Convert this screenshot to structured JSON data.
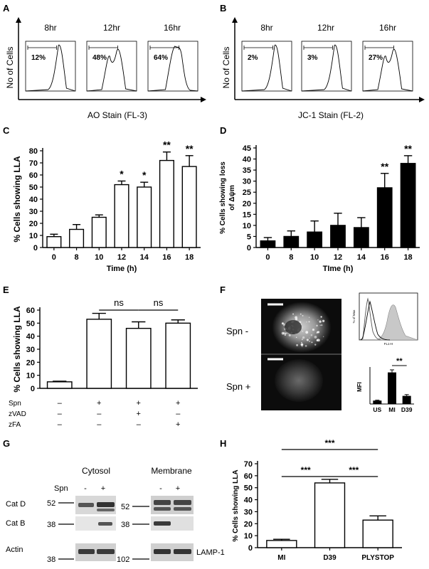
{
  "panel_letters": [
    "A",
    "B",
    "C",
    "D",
    "E",
    "F",
    "G",
    "H"
  ],
  "panelA": {
    "times": [
      "8hr",
      "12hr",
      "16hr"
    ],
    "percents": [
      "12%",
      "48%",
      "64%"
    ],
    "ylabel": "No of Cells",
    "xlabel": "AO Stain (FL-3)"
  },
  "panelB": {
    "times": [
      "8hr",
      "12hr",
      "16hr"
    ],
    "percents": [
      "2%",
      "3%",
      "27%"
    ],
    "ylabel": "No of Cells",
    "xlabel": "JC-1 Stain (FL-2)"
  },
  "panelE": {
    "row_labels": [
      "Spn",
      "zVAD",
      "zFA"
    ],
    "signs": [
      [
        "–",
        "+",
        "+",
        "+"
      ],
      [
        "–",
        "–",
        "+",
        "–"
      ],
      [
        "–",
        "–",
        "–",
        "+"
      ]
    ],
    "ns_label": "ns"
  },
  "panelF": {
    "label_minus": "Spn -",
    "label_plus": "Spn +",
    "hist_ylabel": "% of Max",
    "hist_xlabel": "FL1-H",
    "mfi_ylabel": "MFI",
    "mfi_categories": [
      "US",
      "MI",
      "D39"
    ],
    "mfi_values": [
      4,
      37,
      9.5
    ],
    "mfi_errors": [
      0.5,
      3,
      1.5
    ],
    "mfi_ylim": [
      0,
      40
    ],
    "mfi_sig": "**"
  },
  "panelG": {
    "cytosol": "Cytosol",
    "membrane": "Membrane",
    "spn": "Spn",
    "lane_signs": [
      "-",
      "+"
    ],
    "rows": [
      "Cat D",
      "Cat B",
      "Actin"
    ],
    "cyto_mw": [
      "52",
      "38",
      "38"
    ],
    "mem_mw": [
      "52",
      "38",
      "102"
    ],
    "lamp": "LAMP-1"
  },
  "chart_data": [
    {
      "id": "C",
      "type": "bar",
      "categories": [
        "0",
        "8",
        "10",
        "12",
        "14",
        "16",
        "18"
      ],
      "values": [
        9,
        15,
        25,
        52,
        50,
        72,
        67
      ],
      "errors": [
        2,
        4,
        2,
        3,
        4,
        7,
        9
      ],
      "significance": [
        "",
        "",
        "",
        "*",
        "*",
        "**",
        "**"
      ],
      "xlabel": "Time (h)",
      "ylabel": "% Cells showing LLA",
      "ylim": [
        0,
        80
      ],
      "yticks": [
        0,
        10,
        20,
        30,
        40,
        50,
        60,
        70,
        80
      ],
      "fill": "#ffffff"
    },
    {
      "id": "D",
      "type": "bar",
      "categories": [
        "0",
        "8",
        "10",
        "12",
        "14",
        "16",
        "18"
      ],
      "values": [
        3,
        5,
        7,
        10,
        9,
        27,
        38
      ],
      "errors": [
        1.5,
        2.5,
        5,
        5.5,
        4.5,
        6.5,
        3.5
      ],
      "significance": [
        "",
        "",
        "",
        "",
        "",
        "**",
        "**"
      ],
      "xlabel": "TIme (h)",
      "ylabel": "% Cells showing loss of Δψm",
      "ylim": [
        0,
        45
      ],
      "yticks": [
        0,
        5,
        10,
        15,
        20,
        25,
        30,
        35,
        40,
        45
      ],
      "fill": "#000000"
    },
    {
      "id": "E",
      "type": "bar",
      "categories": [
        "1",
        "2",
        "3",
        "4"
      ],
      "values": [
        5,
        53,
        46,
        50
      ],
      "errors": [
        0.5,
        4.5,
        5,
        2.5
      ],
      "xlabel": "",
      "ylabel": "% Cells showing LLA",
      "ylim": [
        0,
        60
      ],
      "yticks": [
        0,
        10,
        20,
        30,
        40,
        50,
        60
      ],
      "fill": "#ffffff"
    },
    {
      "id": "H",
      "type": "bar",
      "categories": [
        "MI",
        "D39",
        "PLYSTOP"
      ],
      "values": [
        6,
        54,
        23
      ],
      "errors": [
        1,
        3,
        3.5
      ],
      "xlabel": "",
      "ylabel": "% Cells showing LLA",
      "ylim": [
        0,
        70
      ],
      "yticks": [
        0,
        10,
        20,
        30,
        40,
        50,
        60,
        70
      ],
      "significance_label": "***",
      "fill": "#ffffff"
    }
  ]
}
